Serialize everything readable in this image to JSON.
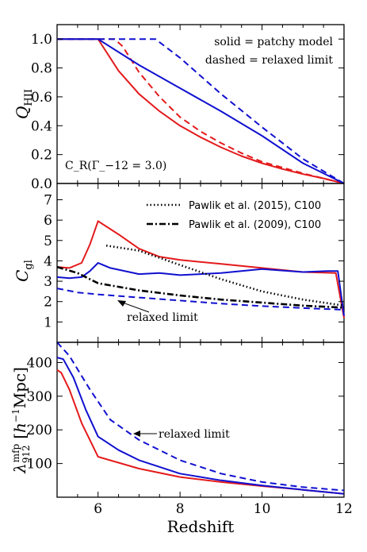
{
  "colors": {
    "red": "#e41a1c",
    "blue": "#1010d0",
    "black": "#000000"
  },
  "chart_data": [
    {
      "type": "line",
      "ylabel": "Q_HII",
      "xlim": [
        5,
        12
      ],
      "ylim": [
        0,
        1.1
      ],
      "yticks": [
        "0.0",
        "0.2",
        "0.4",
        "0.6",
        "0.8",
        "1.0"
      ],
      "yticks_values": [
        0,
        0.2,
        0.4,
        0.6,
        0.8,
        1.0
      ],
      "annotations": {
        "legend_solid": "solid = patchy model",
        "legend_dashed": "dashed = relaxed limit",
        "cr_label": "C_R(Γ_−12 = 3.0)"
      },
      "series": [
        {
          "color": "red",
          "style": "solid",
          "x": [
            5,
            6,
            6.5,
            7,
            7.5,
            8,
            8.5,
            9,
            9.5,
            10,
            10.5,
            11,
            11.5,
            12
          ],
          "y": [
            1.0,
            1.0,
            0.78,
            0.62,
            0.5,
            0.4,
            0.32,
            0.25,
            0.19,
            0.14,
            0.1,
            0.065,
            0.035,
            0.0
          ]
        },
        {
          "color": "red",
          "style": "dashed",
          "x": [
            5,
            6.4,
            6.6,
            7,
            7.5,
            8,
            8.5,
            9,
            9.5,
            10,
            10.5,
            11,
            11.5,
            12
          ],
          "y": [
            1.0,
            1.0,
            0.95,
            0.77,
            0.6,
            0.46,
            0.36,
            0.28,
            0.21,
            0.15,
            0.11,
            0.07,
            0.035,
            0.0
          ]
        },
        {
          "color": "blue",
          "style": "solid",
          "x": [
            5,
            6,
            7,
            8,
            9,
            10,
            11,
            12
          ],
          "y": [
            1.0,
            1.0,
            0.82,
            0.66,
            0.5,
            0.33,
            0.14,
            0.0
          ]
        },
        {
          "color": "blue",
          "style": "dashed",
          "x": [
            5,
            7.4,
            8,
            9,
            10,
            11,
            12
          ],
          "y": [
            1.0,
            1.0,
            0.87,
            0.62,
            0.39,
            0.17,
            0.0
          ]
        }
      ]
    },
    {
      "type": "line",
      "ylabel": "C_gl",
      "xlim": [
        5,
        12
      ],
      "ylim": [
        0,
        7.8
      ],
      "yticks": [
        "1",
        "2",
        "3",
        "4",
        "5",
        "6",
        "7"
      ],
      "yticks_values": [
        1,
        2,
        3,
        4,
        5,
        6,
        7
      ],
      "legend": [
        {
          "label": "Pawlik et al. (2015), C100",
          "style": "dotted"
        },
        {
          "label": "Pawlik et al. (2009), C100",
          "style": "dashdot"
        }
      ],
      "annotations": {
        "relaxed_limit": "relaxed limit"
      },
      "series": [
        {
          "color": "red",
          "style": "solid",
          "x": [
            5,
            5.3,
            5.6,
            5.8,
            6,
            6.5,
            7,
            7.5,
            8,
            9,
            10,
            11,
            11.8,
            12
          ],
          "y": [
            3.7,
            3.65,
            3.9,
            4.8,
            5.95,
            5.3,
            4.6,
            4.2,
            4.05,
            3.85,
            3.65,
            3.45,
            3.4,
            1.2
          ]
        },
        {
          "color": "blue",
          "style": "solid",
          "x": [
            5,
            5.3,
            5.6,
            5.8,
            6,
            6.3,
            7,
            7.5,
            8,
            8.5,
            9,
            9.5,
            10,
            11,
            11.6,
            11.85,
            12
          ],
          "y": [
            3.2,
            3.15,
            3.2,
            3.5,
            3.9,
            3.65,
            3.35,
            3.4,
            3.3,
            3.35,
            3.4,
            3.5,
            3.6,
            3.45,
            3.5,
            3.5,
            1.3
          ]
        },
        {
          "color": "blue",
          "style": "dashed",
          "x": [
            5,
            5.5,
            6,
            7,
            8,
            9,
            10,
            11,
            12
          ],
          "y": [
            2.65,
            2.45,
            2.35,
            2.2,
            2.05,
            1.9,
            1.78,
            1.68,
            1.6
          ]
        },
        {
          "color": "black",
          "style": "dotted",
          "x": [
            6.2,
            7,
            8,
            9,
            10,
            11,
            12
          ],
          "y": [
            4.75,
            4.5,
            3.8,
            3.1,
            2.5,
            2.1,
            1.8
          ]
        },
        {
          "color": "black",
          "style": "dashdot",
          "x": [
            5,
            5.5,
            6,
            7,
            8,
            9,
            10,
            11,
            12
          ],
          "y": [
            3.7,
            3.4,
            2.9,
            2.55,
            2.3,
            2.1,
            1.95,
            1.8,
            1.7
          ]
        }
      ]
    },
    {
      "type": "line",
      "ylabel": "λ_912^mfp [h^−1 Mpc]",
      "xlabel": "Redshift",
      "xlim": [
        5,
        12
      ],
      "ylim": [
        0,
        460
      ],
      "yticks": [
        "100",
        "200",
        "300",
        "400"
      ],
      "yticks_values": [
        100,
        200,
        300,
        400
      ],
      "xticks": [
        "6",
        "8",
        "10",
        "12"
      ],
      "xticks_values": [
        6,
        8,
        10,
        12
      ],
      "annotations": {
        "relaxed_limit": "relaxed limit"
      },
      "series": [
        {
          "color": "red",
          "style": "solid",
          "x": [
            5,
            5.1,
            5.3,
            5.6,
            6,
            7,
            8,
            9,
            10,
            11,
            12
          ],
          "y": [
            378,
            370,
            320,
            220,
            120,
            85,
            60,
            45,
            33,
            22,
            10
          ]
        },
        {
          "color": "blue",
          "style": "solid",
          "x": [
            5,
            5.15,
            5.4,
            5.7,
            6,
            6.5,
            7,
            8,
            9,
            10,
            11,
            12
          ],
          "y": [
            415,
            410,
            355,
            260,
            180,
            140,
            110,
            70,
            50,
            35,
            22,
            10
          ]
        },
        {
          "color": "blue",
          "style": "dashed",
          "x": [
            5,
            5.3,
            5.8,
            6.3,
            7,
            8,
            9,
            10,
            11,
            12
          ],
          "y": [
            460,
            420,
            320,
            230,
            170,
            110,
            70,
            45,
            30,
            20
          ]
        }
      ]
    }
  ]
}
